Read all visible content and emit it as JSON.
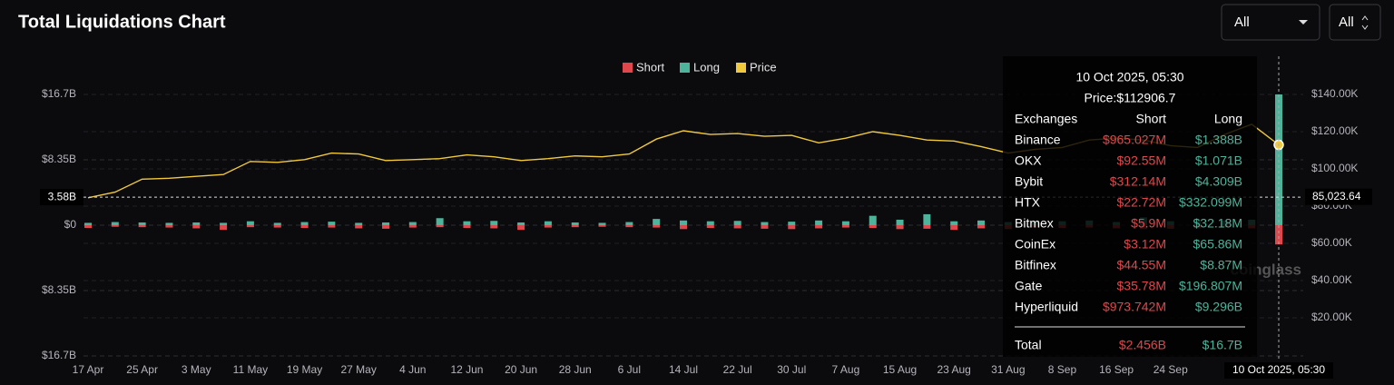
{
  "chart_data": {
    "type": "combo",
    "title": "Total Liquidations Chart",
    "controls": [
      "All",
      "All"
    ],
    "categories": [
      "17 Apr",
      null,
      "25 Apr",
      null,
      "3 May",
      null,
      "11 May",
      null,
      "19 May",
      null,
      "27 May",
      null,
      "4 Jun",
      null,
      "12 Jun",
      null,
      "20 Jun",
      null,
      "28 Jun",
      null,
      "6 Jul",
      null,
      "14 Jul",
      null,
      "22 Jul",
      null,
      "30 Jul",
      null,
      "7 Aug",
      null,
      "15 Aug",
      null,
      "23 Aug",
      null,
      "31 Aug",
      null,
      "8 Sep",
      null,
      "16 Sep",
      null,
      "24 Sep",
      null,
      null,
      null,
      "10 Oct 2025, 05:30"
    ],
    "series": [
      {
        "name": "Short",
        "color": "#e0474c",
        "type": "bar",
        "values": [
          -0.35,
          -0.2,
          -0.25,
          -0.3,
          -0.4,
          -0.6,
          -0.25,
          -0.3,
          -0.35,
          -0.3,
          -0.4,
          -0.45,
          -0.3,
          -0.25,
          -0.35,
          -0.4,
          -0.6,
          -0.3,
          -0.25,
          -0.2,
          -0.25,
          -0.3,
          -0.5,
          -0.35,
          -0.4,
          -0.45,
          -0.5,
          -0.4,
          -0.3,
          -0.35,
          -0.5,
          -0.45,
          -0.6,
          -0.4,
          -0.5,
          -0.3,
          -0.35,
          -0.3,
          -0.4,
          -0.5,
          -0.45,
          -0.4,
          -0.3,
          -0.4,
          -2.456
        ]
      },
      {
        "name": "Long",
        "color": "#4db39a",
        "type": "bar",
        "values": [
          0.3,
          0.4,
          0.35,
          0.3,
          0.35,
          0.3,
          0.5,
          0.3,
          0.4,
          0.45,
          0.3,
          0.35,
          0.4,
          0.9,
          0.5,
          0.55,
          0.35,
          0.5,
          0.35,
          0.3,
          0.4,
          0.8,
          0.6,
          0.5,
          0.55,
          0.4,
          0.45,
          0.6,
          0.5,
          1.2,
          0.7,
          1.4,
          0.5,
          0.6,
          0.4,
          0.45,
          0.5,
          0.6,
          0.4,
          1.0,
          0.5,
          0.45,
          0.6,
          0.7,
          16.7
        ]
      },
      {
        "name": "Price",
        "color": "#f0c93c",
        "type": "line",
        "axis": "y2",
        "values": [
          84500,
          87500,
          94500,
          95000,
          96000,
          97000,
          104000,
          103500,
          105000,
          108500,
          108000,
          104500,
          105000,
          105500,
          107500,
          106500,
          104500,
          105500,
          107000,
          106500,
          108000,
          116000,
          120500,
          118500,
          119000,
          117500,
          118000,
          114000,
          116500,
          120000,
          118000,
          115500,
          115000,
          112000,
          108500,
          110500,
          111500,
          115500,
          116500,
          115500,
          112500,
          111500,
          118500,
          124000,
          112906.7
        ]
      }
    ],
    "ylim": [
      -16.7,
      16.7
    ],
    "yticks": [
      {
        "value": 16.7,
        "label": "$16.7B"
      },
      {
        "value": 8.35,
        "label": "$8.35B"
      },
      {
        "value": 0,
        "label": "$0"
      },
      {
        "value": -8.35,
        "label": "$8.35B"
      },
      {
        "value": -16.7,
        "label": "$16.7B"
      }
    ],
    "y2lim": [
      0,
      140000
    ],
    "y2ticks": [
      {
        "value": 20000,
        "label": "$20.00K"
      },
      {
        "value": 40000,
        "label": "$40.00K"
      },
      {
        "value": 60000,
        "label": "$60.00K"
      },
      {
        "value": 80000,
        "label": "$80.00K"
      },
      {
        "value": 100000,
        "label": "$100.00K"
      },
      {
        "value": 120000,
        "label": "$120.00K"
      },
      {
        "value": 140000,
        "label": "$140.00K"
      }
    ],
    "grid": true,
    "crosshair": {
      "y": {
        "value": 3.58,
        "label": "3.58B"
      },
      "y2": {
        "value": 85023.64,
        "label": "85,023.64"
      }
    },
    "watermark": "coinglass",
    "tooltip": {
      "title": "10 Oct 2025, 05:30",
      "price": "Price:$112906.7",
      "columns": [
        "Exchanges",
        "Short",
        "Long"
      ],
      "rows": [
        [
          "Binance",
          "$965.027M",
          "$1.388B"
        ],
        [
          "OKX",
          "$92.55M",
          "$1.071B"
        ],
        [
          "Bybit",
          "$312.14M",
          "$4.309B"
        ],
        [
          "HTX",
          "$22.72M",
          "$332.099M"
        ],
        [
          "Bitmex",
          "$5.9M",
          "$32.18M"
        ],
        [
          "CoinEx",
          "$3.12M",
          "$65.86M"
        ],
        [
          "Bitfinex",
          "$44.55M",
          "$8.87M"
        ],
        [
          "Gate",
          "$35.78M",
          "$196.807M"
        ],
        [
          "Hyperliquid",
          "$973.742M",
          "$9.296B"
        ]
      ],
      "total": [
        "Total",
        "$2.456B",
        "$16.7B"
      ]
    }
  }
}
